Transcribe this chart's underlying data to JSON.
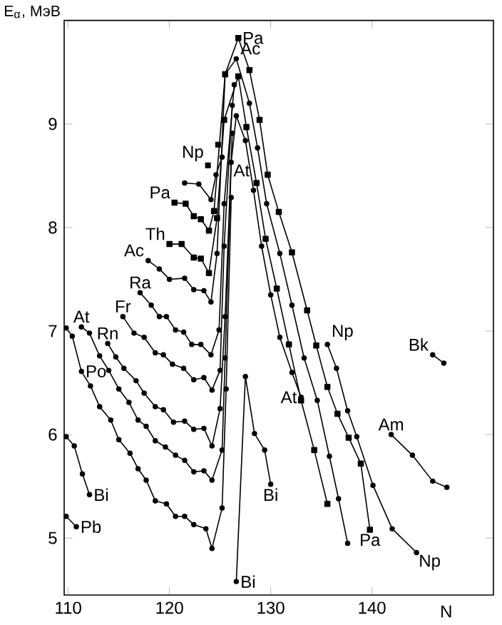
{
  "chart_data": {
    "type": "line",
    "ylabel": "E$_{α}$, МэВ",
    "xlabel": "N",
    "xlim": [
      109.6,
      152
    ],
    "ylim": [
      4.45,
      10.0
    ],
    "xticks": [
      110,
      120,
      130,
      140
    ],
    "yticks": [
      5,
      6,
      7,
      8,
      9
    ],
    "marker": "circle",
    "line_style": "solid",
    "series": [
      {
        "color": "#000000",
        "x": [
          109.8,
          110.8
        ],
        "values": [
          5.21,
          5.11
        ]
      },
      {
        "color": "#000000",
        "x": [
          109.8,
          110.6,
          111.4,
          112.1
        ],
        "values": [
          5.98,
          5.89,
          5.62,
          5.42
        ]
      },
      {
        "color": "#000000",
        "x": [
          109.8,
          110.4,
          111.3,
          112.2,
          113.1,
          114.2,
          115.0,
          116.1,
          116.9,
          117.7,
          118.6,
          119.7,
          120.6,
          121.5,
          122.4,
          123.6,
          124.2,
          125.2,
          125.6,
          126.1
        ],
        "values": [
          7.03,
          6.95,
          6.61,
          6.47,
          6.27,
          6.14,
          5.95,
          5.82,
          5.67,
          5.56,
          5.36,
          5.33,
          5.21,
          5.21,
          5.13,
          5.09,
          4.9,
          5.29,
          6.44,
          8.29
        ]
      },
      {
        "color": "#000000",
        "x": [
          111.3,
          112.1,
          113.1,
          114.0,
          115.0,
          116.0,
          116.9,
          117.7,
          118.6,
          119.6,
          120.6,
          121.5,
          122.4,
          123.4,
          124.2,
          125.2,
          125.5,
          126.1,
          126.6,
          127.5,
          128.3,
          129.1,
          130.0,
          130.9,
          132.1,
          133.0
        ],
        "values": [
          7.04,
          6.98,
          6.76,
          6.62,
          6.44,
          6.31,
          6.14,
          6.08,
          5.94,
          5.88,
          5.8,
          5.75,
          5.64,
          5.65,
          5.56,
          5.85,
          6.74,
          8.63,
          9.08,
          8.84,
          8.36,
          7.82,
          7.35,
          6.94,
          6.6,
          6.36
        ]
      },
      {
        "color": "#000000",
        "x": [
          113.9,
          114.7,
          115.5,
          116.7,
          117.5,
          118.6,
          119.4,
          120.4,
          121.5,
          122.4,
          123.4,
          124.2,
          125.0,
          125.5,
          126.2
        ],
        "values": [
          6.88,
          6.75,
          6.64,
          6.52,
          6.4,
          6.27,
          6.24,
          6.12,
          6.13,
          6.05,
          6.06,
          5.89,
          6.25,
          7.14,
          8.91
        ]
      },
      {
        "color": "#000000",
        "x": [
          115.4,
          116.5,
          117.5,
          118.6,
          119.4,
          120.3,
          121.4,
          122.4,
          123.4,
          124.2,
          125.0,
          125.4,
          126.2
        ],
        "values": [
          7.14,
          6.98,
          6.94,
          6.79,
          6.77,
          6.68,
          6.64,
          6.53,
          6.55,
          6.43,
          6.62,
          7.82,
          9.18
        ]
      },
      {
        "color": "#000000",
        "x": [
          117.1,
          118.2,
          119.0,
          119.7,
          120.6,
          121.4,
          122.2,
          123.1,
          124.1,
          124.9,
          125.4,
          126.4
        ],
        "values": [
          7.37,
          7.25,
          7.14,
          7.14,
          7.01,
          6.99,
          6.87,
          6.87,
          6.77,
          7.01,
          8.23,
          9.38
        ]
      },
      {
        "color": "#000000",
        "x": [
          117.9,
          119.0,
          120.0,
          121.5,
          122.4,
          123.4,
          124.1,
          124.7,
          125.5,
          126.6,
          127.9,
          128.7,
          129.6,
          130.9,
          132.1,
          133.3,
          134.6,
          135.8,
          136.7,
          137.6
        ],
        "values": [
          7.68,
          7.6,
          7.5,
          7.51,
          7.4,
          7.39,
          7.28,
          7.75,
          9.48,
          9.63,
          9.2,
          8.77,
          8.23,
          7.75,
          7.25,
          6.74,
          6.33,
          5.79,
          5.38,
          4.95
        ]
      },
      {
        "color": "#000000",
        "marker": "square",
        "x": [
          120.0,
          121.2,
          122.4,
          123.1,
          123.9,
          124.7,
          125.4,
          126.8,
          127.6,
          128.6,
          129.5,
          130.6,
          131.8,
          133.0,
          134.3,
          135.6
        ],
        "values": [
          7.84,
          7.84,
          7.71,
          7.7,
          7.56,
          8.09,
          9.04,
          9.46,
          8.97,
          8.43,
          7.89,
          7.41,
          6.87,
          6.33,
          5.85,
          5.33
        ]
      },
      {
        "color": "#000000",
        "marker": "square",
        "x": [
          120.5,
          121.6,
          122.4,
          123.1,
          123.9,
          124.4,
          125.5,
          126.8,
          127.9,
          128.9,
          129.7,
          130.8,
          132.1,
          133.6,
          134.5,
          135.6,
          136.6,
          137.7,
          138.9,
          139.8
        ],
        "values": [
          8.24,
          8.23,
          8.11,
          8.08,
          7.97,
          8.16,
          9.48,
          9.83,
          9.52,
          9.04,
          8.51,
          8.15,
          7.76,
          7.2,
          6.86,
          6.46,
          6.2,
          5.97,
          5.72,
          5.08
        ]
      },
      {
        "color": "#000000",
        "x": [
          121.5,
          122.9,
          124.1,
          124.6,
          125.2
        ],
        "values": [
          8.43,
          8.42,
          8.27,
          8.51,
          8.68
        ]
      },
      {
        "color": "#000000",
        "type": "scatter",
        "marker": "square",
        "x": [
          123.8,
          124.8
        ],
        "values": [
          8.6,
          8.8
        ]
      },
      {
        "color": "#000000",
        "x": [
          135.6,
          136.5,
          137.6,
          138.5,
          140.1,
          142.0,
          144.4
        ],
        "values": [
          6.87,
          6.64,
          6.23,
          5.98,
          5.51,
          5.09,
          4.86
        ]
      },
      {
        "color": "#000000",
        "x": [
          126.6,
          127.5,
          128.4,
          129.4,
          130.0
        ],
        "values": [
          4.58,
          6.56,
          6.01,
          5.85,
          5.52
        ]
      },
      {
        "color": "#000000",
        "x": [
          141.9,
          144.0,
          146.0,
          147.4
        ],
        "values": [
          6.0,
          5.8,
          5.55,
          5.49
        ]
      },
      {
        "color": "#000000",
        "x": [
          146.0,
          147.1
        ],
        "values": [
          6.77,
          6.69
        ]
      }
    ],
    "annotations": [
      {
        "text": "Pb",
        "x": 110.8,
        "y": 5.11
      },
      {
        "text": "Bi",
        "x": 112.1,
        "y": 5.42
      },
      {
        "text": "Po",
        "x": 111.3,
        "y": 6.61
      },
      {
        "text": "At",
        "x": 111.3,
        "y": 7.04
      },
      {
        "text": "Rn",
        "x": 113.9,
        "y": 6.88
      },
      {
        "text": "Fr",
        "x": 115.4,
        "y": 7.14
      },
      {
        "text": "Ra",
        "x": 117.1,
        "y": 7.37
      },
      {
        "text": "Ac",
        "x": 117.9,
        "y": 7.68
      },
      {
        "text": "Th",
        "x": 120.0,
        "y": 7.84
      },
      {
        "text": "Pa",
        "x": 120.5,
        "y": 8.24
      },
      {
        "text": "Np",
        "x": 123.8,
        "y": 8.6
      },
      {
        "text": "At",
        "x": 126.1,
        "y": 8.63
      },
      {
        "text": "Pa",
        "x": 126.8,
        "y": 9.83
      },
      {
        "text": "Ac",
        "x": 126.6,
        "y": 9.63
      },
      {
        "text": "At",
        "x": 133.0,
        "y": 6.36
      },
      {
        "text": "Bi",
        "x": 130.0,
        "y": 5.52
      },
      {
        "text": "Bi",
        "x": 126.6,
        "y": 4.58
      },
      {
        "text": "Np",
        "x": 135.6,
        "y": 6.87
      },
      {
        "text": "Pa",
        "x": 139.8,
        "y": 5.08
      },
      {
        "text": "Np",
        "x": 144.4,
        "y": 4.86
      },
      {
        "text": "Am",
        "x": 141.9,
        "y": 6.0
      },
      {
        "text": "Bk",
        "x": 146.0,
        "y": 6.77
      }
    ]
  }
}
